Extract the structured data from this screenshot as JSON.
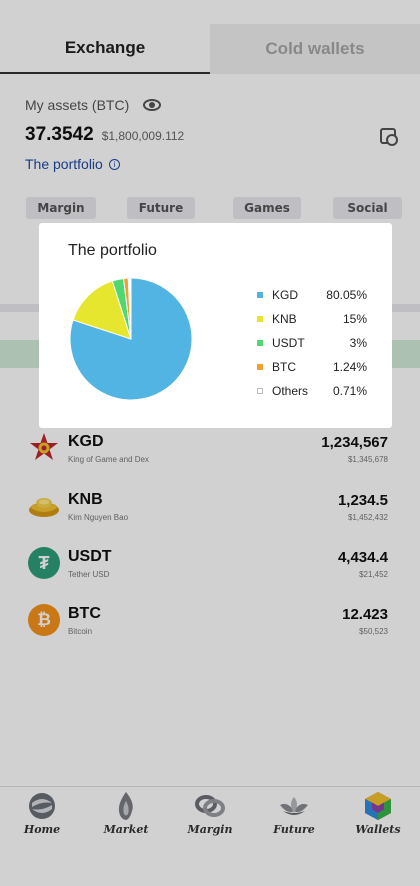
{
  "tabs": [
    {
      "label": "Exchange",
      "active": true
    },
    {
      "label": "Cold wallets",
      "active": false
    }
  ],
  "assets": {
    "label": "My assets (BTC)",
    "balance": "37.3542",
    "fiat": "$1,800,009.112",
    "portfolio_link": "The portfolio",
    "info_glyph": "i"
  },
  "chips": [
    "Margin",
    "Future",
    "Games",
    "Social"
  ],
  "tokens": [
    {
      "symbol": "KGD",
      "name": "King of Game and Dex",
      "amount": "1,234,567",
      "value": "$1,345,678",
      "icon": "kgd-star-icon"
    },
    {
      "symbol": "KNB",
      "name": "Kim Nguyen Bao",
      "amount": "1,234.5",
      "value": "$1,452,432",
      "icon": "gold-ingot-icon"
    },
    {
      "symbol": "USDT",
      "name": "Tether USD",
      "amount": "4,434.4",
      "value": "$21,452",
      "icon": "tether-icon",
      "glyph": "₮"
    },
    {
      "symbol": "BTC",
      "name": "Bitcoin",
      "amount": "12.423",
      "value": "$50,523",
      "icon": "bitcoin-icon",
      "glyph": "₿"
    }
  ],
  "nav": [
    {
      "label": "Home",
      "icon": "home-swirl-icon"
    },
    {
      "label": "Market",
      "icon": "market-flame-icon"
    },
    {
      "label": "Margin",
      "icon": "margin-knot-icon"
    },
    {
      "label": "Future",
      "icon": "future-lotus-icon"
    },
    {
      "label": "Wallets",
      "icon": "wallets-cube-icon"
    }
  ],
  "modal": {
    "title": "The portfolio"
  },
  "chart_data": {
    "type": "pie",
    "title": "The portfolio",
    "categories": [
      "KGD",
      "KNB",
      "USDT",
      "BTC",
      "Others"
    ],
    "values": [
      80.05,
      15,
      3,
      1.24,
      0.71
    ],
    "labels": [
      "80.05%",
      "15%",
      "3%",
      "1.24%",
      "0.71%"
    ],
    "colors": [
      "#52b4e2",
      "#e6e62e",
      "#50d870",
      "#f0a030",
      "#ffffff"
    ],
    "legend": "right"
  }
}
